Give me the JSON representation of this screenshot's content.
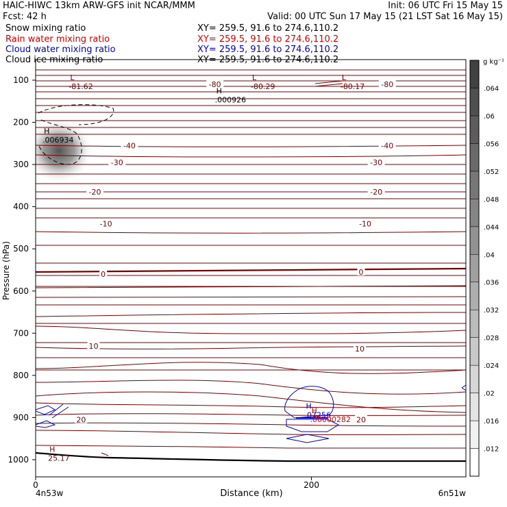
{
  "header": {
    "left_line1": "HAIC-HIWC 13km ARW-GFS init   NCAR/MMM",
    "right_line1": "Init: 06 UTC Fri 15 May 15",
    "left_line2": "Fcst:    42 h",
    "right_line2": "Valid: 00 UTC Sun 17 May 15 (21 LST Sat 16 May 15)",
    "fields": [
      {
        "name": "Snow mixing ratio",
        "xy": "XY= 259.5, 91.6 to 274.6,110.2",
        "color": "#000000"
      },
      {
        "name": "Rain water mixing ratio",
        "xy": "XY= 259.5, 91.6 to 274.6,110.2",
        "color": "#e00000"
      },
      {
        "name": "Cloud water mixing ratio",
        "xy": "XY= 259.5, 91.6 to 274.6,110.2",
        "color": "#0000cc"
      },
      {
        "name": "Cloud ice mixing ratio",
        "xy": "XY= 259.5, 91.6 to 274.6,110.2",
        "color": "#000000"
      }
    ]
  },
  "chart_data": {
    "type": "contour",
    "xlabel": "Distance (km)",
    "ylabel": "Pressure (hPa)",
    "x_range": [
      0,
      312
    ],
    "x_ticks": [
      0,
      200
    ],
    "y_range": [
      1050,
      50
    ],
    "y_ticks": [
      100,
      200,
      300,
      400,
      500,
      600,
      700,
      800,
      900,
      1000
    ],
    "x_endpoint_labels": [
      "4n53w",
      "6n51w"
    ],
    "colors": {
      "temperature_contour": "#7a0000",
      "cloud_water_contour": "#0000cc",
      "rain_water_label": "#e00000",
      "terrain": "#000000"
    },
    "temperature_labels": [
      {
        "text": "-80",
        "x": 130,
        "p": 110
      },
      {
        "text": "-80",
        "x": 255,
        "p": 110
      },
      {
        "text": "-40",
        "x": 68,
        "p": 255
      },
      {
        "text": "-40",
        "x": 255,
        "p": 255
      },
      {
        "text": "-30",
        "x": 59,
        "p": 295
      },
      {
        "text": "-30",
        "x": 247,
        "p": 295
      },
      {
        "text": "-20",
        "x": 43,
        "p": 365
      },
      {
        "text": "-20",
        "x": 247,
        "p": 365
      },
      {
        "text": "-10",
        "x": 51,
        "p": 440
      },
      {
        "text": "-10",
        "x": 239,
        "p": 440
      },
      {
        "text": "0",
        "x": 49,
        "p": 560
      },
      {
        "text": "0",
        "x": 236,
        "p": 555
      },
      {
        "text": "10",
        "x": 42,
        "p": 730
      },
      {
        "text": "10",
        "x": 235,
        "p": 737
      },
      {
        "text": "20",
        "x": 33,
        "p": 905
      },
      {
        "text": "20",
        "x": 236,
        "p": 905
      }
    ],
    "extrema": [
      {
        "mark": "L",
        "value": "-81.62",
        "x": 25,
        "p": 103,
        "color": "#7a0000"
      },
      {
        "mark": "L",
        "value": "-80.29",
        "x": 157,
        "p": 103,
        "color": "#7a0000"
      },
      {
        "mark": "L",
        "value": "-80.17",
        "x": 222,
        "p": 103,
        "color": "#7a0000"
      },
      {
        "mark": "H",
        "value": ".000926",
        "x": 131,
        "p": 135,
        "color": "#000000"
      },
      {
        "mark": "H",
        "value": ".006934",
        "x": 6,
        "p": 230,
        "color": "#000000"
      },
      {
        "mark": "H",
        "value": ".07256",
        "x": 196,
        "p": 882,
        "color": "#0000cc"
      },
      {
        "mark": "H",
        "value": ".00000282",
        "x": 200,
        "p": 893,
        "color": "#e00000"
      },
      {
        "mark": "H",
        "value": "25.17",
        "x": 10,
        "p": 985,
        "color": "#7a0000"
      }
    ],
    "colorbar": {
      "unit": "g kg⁻¹",
      "levels": [
        ".012",
        ".016",
        ".02",
        ".024",
        ".028",
        ".032",
        ".036",
        ".04",
        ".044",
        ".048",
        ".052",
        ".056",
        ".06",
        ".064"
      ]
    }
  }
}
